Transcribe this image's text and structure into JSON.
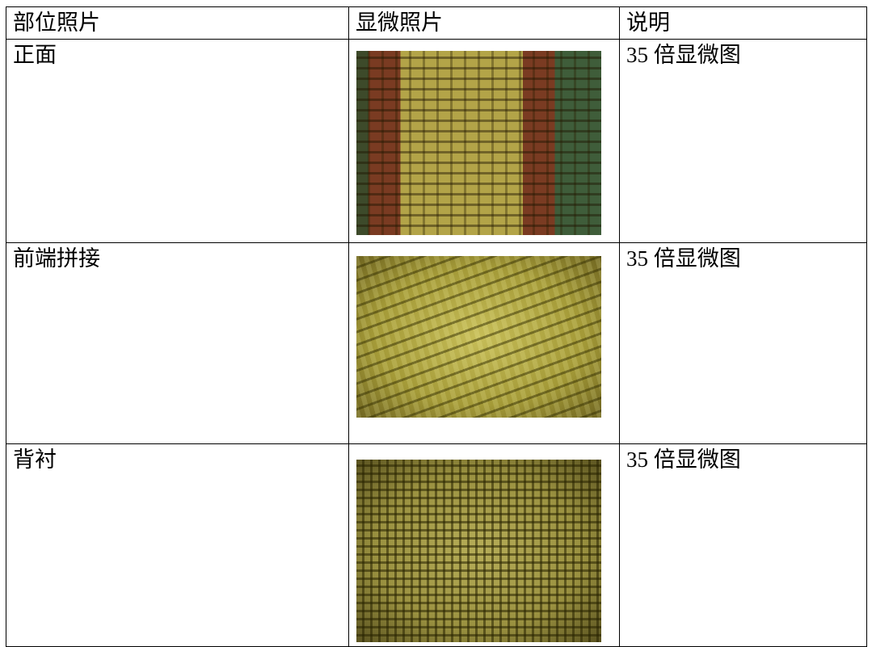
{
  "table": {
    "header": [
      "部位照片",
      "显微照片",
      "说明"
    ],
    "rows": [
      {
        "part": "正面",
        "note": "35 倍显微图"
      },
      {
        "part": "前端拼接",
        "note": "35 倍显微图"
      },
      {
        "part": "背衬",
        "note": "35 倍显微图"
      }
    ]
  }
}
